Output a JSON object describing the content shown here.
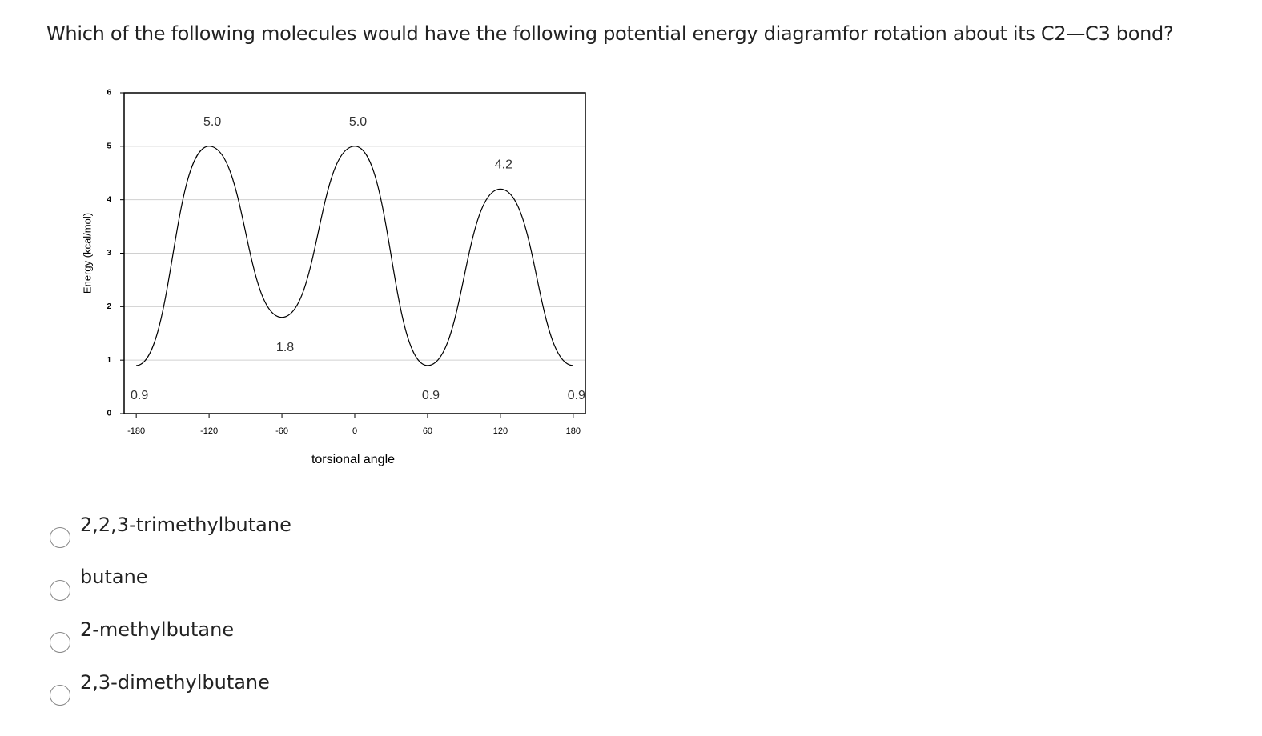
{
  "question": "Which of the following molecules would have the following potential energy diagramfor rotation about its C2—C3 bond?",
  "chart_data": {
    "type": "line",
    "x_label": "torsional angle",
    "y_label": "Energy (kcal/mol)",
    "x": [
      -180,
      -120,
      -60,
      0,
      60,
      120,
      180
    ],
    "series": [
      {
        "name": null,
        "color": "#000000",
        "values": [
          0.9,
          5,
          1.8,
          5,
          0.9,
          4.2,
          0.9
        ],
        "value_labels": [
          "0.9",
          "5.0",
          "1.8",
          "5.0",
          "0.9",
          "4.2",
          "0.9"
        ]
      }
    ],
    "xlim": [
      -190,
      190
    ],
    "xticks": [
      -180,
      -120,
      -60,
      0,
      60,
      120,
      180
    ],
    "ylim": [
      0,
      6
    ],
    "yticks": [
      0,
      1,
      2,
      3,
      4,
      5,
      6
    ],
    "grid": true
  },
  "options": [
    "2,2,3-trimethylbutane",
    "butane",
    "2-methylbutane",
    "2,3-dimethylbutane"
  ]
}
